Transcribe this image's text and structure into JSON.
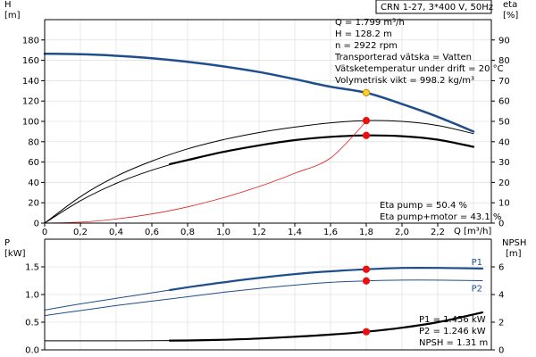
{
  "title_box": "CRN 1-27, 3*400 V, 50Hz",
  "chart_data": [
    {
      "type": "line",
      "name": "upper",
      "ylabel_left": [
        "H",
        "[m]"
      ],
      "ylabel_right": [
        "eta",
        "[%]"
      ],
      "xlabel": "Q [m³/h]",
      "xlim": [
        0,
        2.5
      ],
      "ylim_left": [
        0,
        200
      ],
      "ylim_right": [
        0,
        100
      ],
      "x_ticks": [
        "0",
        "0,2",
        "0,4",
        "0,6",
        "0,8",
        "1,0",
        "1,2",
        "1,4",
        "1,6",
        "1,8",
        "2,0",
        "2,2"
      ],
      "y_left_ticks": [
        "0",
        "20",
        "40",
        "60",
        "80",
        "100",
        "120",
        "140",
        "160",
        "180"
      ],
      "y_right_ticks": [
        "0",
        "10",
        "20",
        "30",
        "40",
        "50",
        "60",
        "70",
        "80",
        "90"
      ],
      "series": [
        {
          "color": "#1f4e8c",
          "axis": "left",
          "width": 2.5,
          "x": [
            0,
            0.2,
            0.4,
            0.6,
            0.8,
            1.0,
            1.2,
            1.4,
            1.6,
            1.8,
            2.0,
            2.2,
            2.4
          ],
          "y": [
            166.5,
            166,
            164.5,
            162,
            158.5,
            154,
            148.5,
            141.5,
            134,
            128.2,
            117,
            104.5,
            90
          ]
        },
        {
          "color": "#000000",
          "axis": "right",
          "width": 1,
          "x": [
            0,
            0.2,
            0.4,
            0.6,
            0.8,
            1.0,
            1.2,
            1.4,
            1.6,
            1.8,
            2.0,
            2.2,
            2.4
          ],
          "y": [
            0,
            13,
            23,
            30.5,
            36.5,
            41,
            44.5,
            47.2,
            49.3,
            50.4,
            50,
            48,
            44
          ]
        },
        {
          "color": "#000000",
          "axis": "right",
          "width": 1,
          "x": [
            0,
            0.2,
            0.4,
            0.6,
            0.8,
            1.0,
            1.2,
            1.4,
            1.6,
            1.8,
            2.0,
            2.2,
            2.4
          ],
          "y": [
            0,
            11,
            19.5,
            26,
            31,
            35,
            38.2,
            40.8,
            42.4,
            43.1,
            42.7,
            41,
            37.5
          ]
        },
        {
          "color": "#000000",
          "axis": "right",
          "width": 2.2,
          "x": [
            0.7,
            0.8,
            1.0,
            1.2,
            1.4,
            1.6,
            1.8,
            2.0,
            2.2,
            2.4
          ],
          "y": [
            29,
            31,
            35,
            38.2,
            40.8,
            42.4,
            43.1,
            42.7,
            41,
            37.5
          ]
        },
        {
          "color": "#e02020",
          "axis": "left",
          "width": 0.8,
          "x": [
            0,
            0.2,
            0.4,
            0.6,
            0.8,
            1.0,
            1.2,
            1.4,
            1.6,
            1.8
          ],
          "y": [
            0,
            1,
            4,
            9,
            16,
            25,
            36,
            49,
            64,
            100
          ]
        }
      ],
      "points": [
        {
          "x": 1.8,
          "y": 128.2,
          "axis": "left",
          "color": "#ffd22e",
          "stroke": "#c88800"
        },
        {
          "x": 1.8,
          "y": 50.4,
          "axis": "right",
          "color": "#e81010",
          "stroke": "#e81010"
        },
        {
          "x": 1.8,
          "y": 43.1,
          "axis": "right",
          "color": "#e81010",
          "stroke": "#e81010"
        }
      ],
      "info_lines": [
        "Q = 1.799 m³/h",
        "H = 128.2 m",
        "n = 2922 rpm",
        "Transporterad vätska = Vatten",
        "Vätsketemperatur under drift = 20 °C",
        "Volymetrisk vikt = 998.2 kg/m³"
      ],
      "eta_lines": [
        "Eta pump = 50.4 %",
        "Eta pump+motor = 43.1 %"
      ]
    },
    {
      "type": "line",
      "name": "lower",
      "ylabel_left": [
        "P",
        "[kW]"
      ],
      "ylabel_right": [
        "NPSH",
        "[m]"
      ],
      "xlim": [
        0,
        2.5
      ],
      "ylim_left": [
        0,
        2
      ],
      "ylim_right": [
        0,
        8
      ],
      "y_left_ticks": [
        "0.0",
        "0.5",
        "1.0",
        "1.5"
      ],
      "y_right_ticks": [
        "0",
        "2",
        "4",
        "6"
      ],
      "series": [
        {
          "name": "P1",
          "color": "#1f4e8c",
          "axis": "left",
          "width": 1,
          "x": [
            0,
            0.2,
            0.4,
            0.6,
            0.8,
            1.0,
            1.2,
            1.4,
            1.6,
            1.8,
            2.0,
            2.2,
            2.45
          ],
          "y": [
            0.72,
            0.83,
            0.93,
            1.03,
            1.13,
            1.22,
            1.3,
            1.37,
            1.42,
            1.456,
            1.48,
            1.48,
            1.47
          ]
        },
        {
          "color": "#1f4e8c",
          "axis": "left",
          "width": 2.2,
          "x": [
            0.7,
            0.8,
            1.0,
            1.2,
            1.4,
            1.6,
            1.8,
            2.0,
            2.2,
            2.45
          ],
          "y": [
            1.08,
            1.13,
            1.22,
            1.3,
            1.37,
            1.42,
            1.456,
            1.48,
            1.48,
            1.47
          ]
        },
        {
          "name": "P2",
          "color": "#1f4e8c",
          "axis": "left",
          "width": 1,
          "x": [
            0,
            0.2,
            0.4,
            0.6,
            0.8,
            1.0,
            1.2,
            1.4,
            1.6,
            1.8,
            2.0,
            2.2,
            2.45
          ],
          "y": [
            0.62,
            0.71,
            0.8,
            0.88,
            0.96,
            1.04,
            1.11,
            1.17,
            1.22,
            1.246,
            1.26,
            1.26,
            1.25
          ]
        },
        {
          "color": "#000000",
          "axis": "right",
          "width": 1,
          "x": [
            0,
            0.2,
            0.4,
            0.6,
            0.8,
            1.0,
            1.2,
            1.4,
            1.6,
            1.8,
            2.0,
            2.2,
            2.45
          ],
          "y": [
            0.65,
            0.65,
            0.65,
            0.66,
            0.68,
            0.73,
            0.82,
            0.95,
            1.1,
            1.31,
            1.6,
            2.0,
            2.7
          ]
        },
        {
          "color": "#000000",
          "axis": "right",
          "width": 2.2,
          "x": [
            0.7,
            0.8,
            1.0,
            1.2,
            1.4,
            1.6,
            1.8,
            2.0,
            2.2,
            2.45
          ],
          "y": [
            0.67,
            0.68,
            0.73,
            0.82,
            0.95,
            1.1,
            1.31,
            1.6,
            2.0,
            2.7
          ]
        }
      ],
      "points": [
        {
          "x": 1.8,
          "y": 1.456,
          "axis": "left",
          "color": "#e81010",
          "stroke": "#e81010"
        },
        {
          "x": 1.8,
          "y": 1.246,
          "axis": "left",
          "color": "#e81010",
          "stroke": "#e81010"
        },
        {
          "x": 1.8,
          "y": 1.31,
          "axis": "right",
          "color": "#e81010",
          "stroke": "#e81010"
        }
      ],
      "series_labels": [
        {
          "text": "P1",
          "color": "#1f4e8c",
          "x": 2.45,
          "y": 1.47,
          "axis": "left"
        },
        {
          "text": "P2",
          "color": "#1f4e8c",
          "x": 2.45,
          "y": 1.25,
          "axis": "left"
        }
      ],
      "result_lines": [
        "P1 = 1.456 kW",
        "P2 = 1.246 kW",
        "NPSH = 1.31 m"
      ]
    }
  ]
}
